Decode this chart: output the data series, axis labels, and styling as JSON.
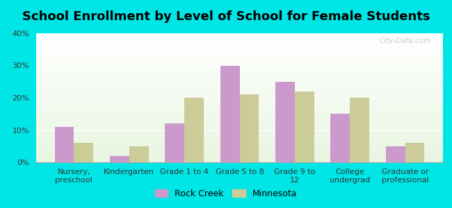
{
  "title": "School Enrollment by Level of School for Female Students",
  "categories": [
    "Nursery,\npreschool",
    "Kindergarten",
    "Grade 1 to 4",
    "Grade 5 to 8",
    "Grade 9 to\n12",
    "College\nundergrad",
    "Graduate or\nprofessional"
  ],
  "rock_creek": [
    11,
    2,
    12,
    30,
    25,
    15,
    5
  ],
  "minnesota": [
    6,
    5,
    20,
    21,
    22,
    20,
    6
  ],
  "rock_creek_color": "#cc99cc",
  "minnesota_color": "#cccc99",
  "background_color": "#00e5e5",
  "ylim": [
    0,
    40
  ],
  "yticks": [
    0,
    10,
    20,
    30,
    40
  ],
  "legend_rock_creek": "Rock Creek",
  "legend_minnesota": "Minnesota",
  "bar_width": 0.35,
  "title_fontsize": 13,
  "tick_fontsize": 8,
  "legend_fontsize": 9,
  "watermark": "City-Data.com"
}
